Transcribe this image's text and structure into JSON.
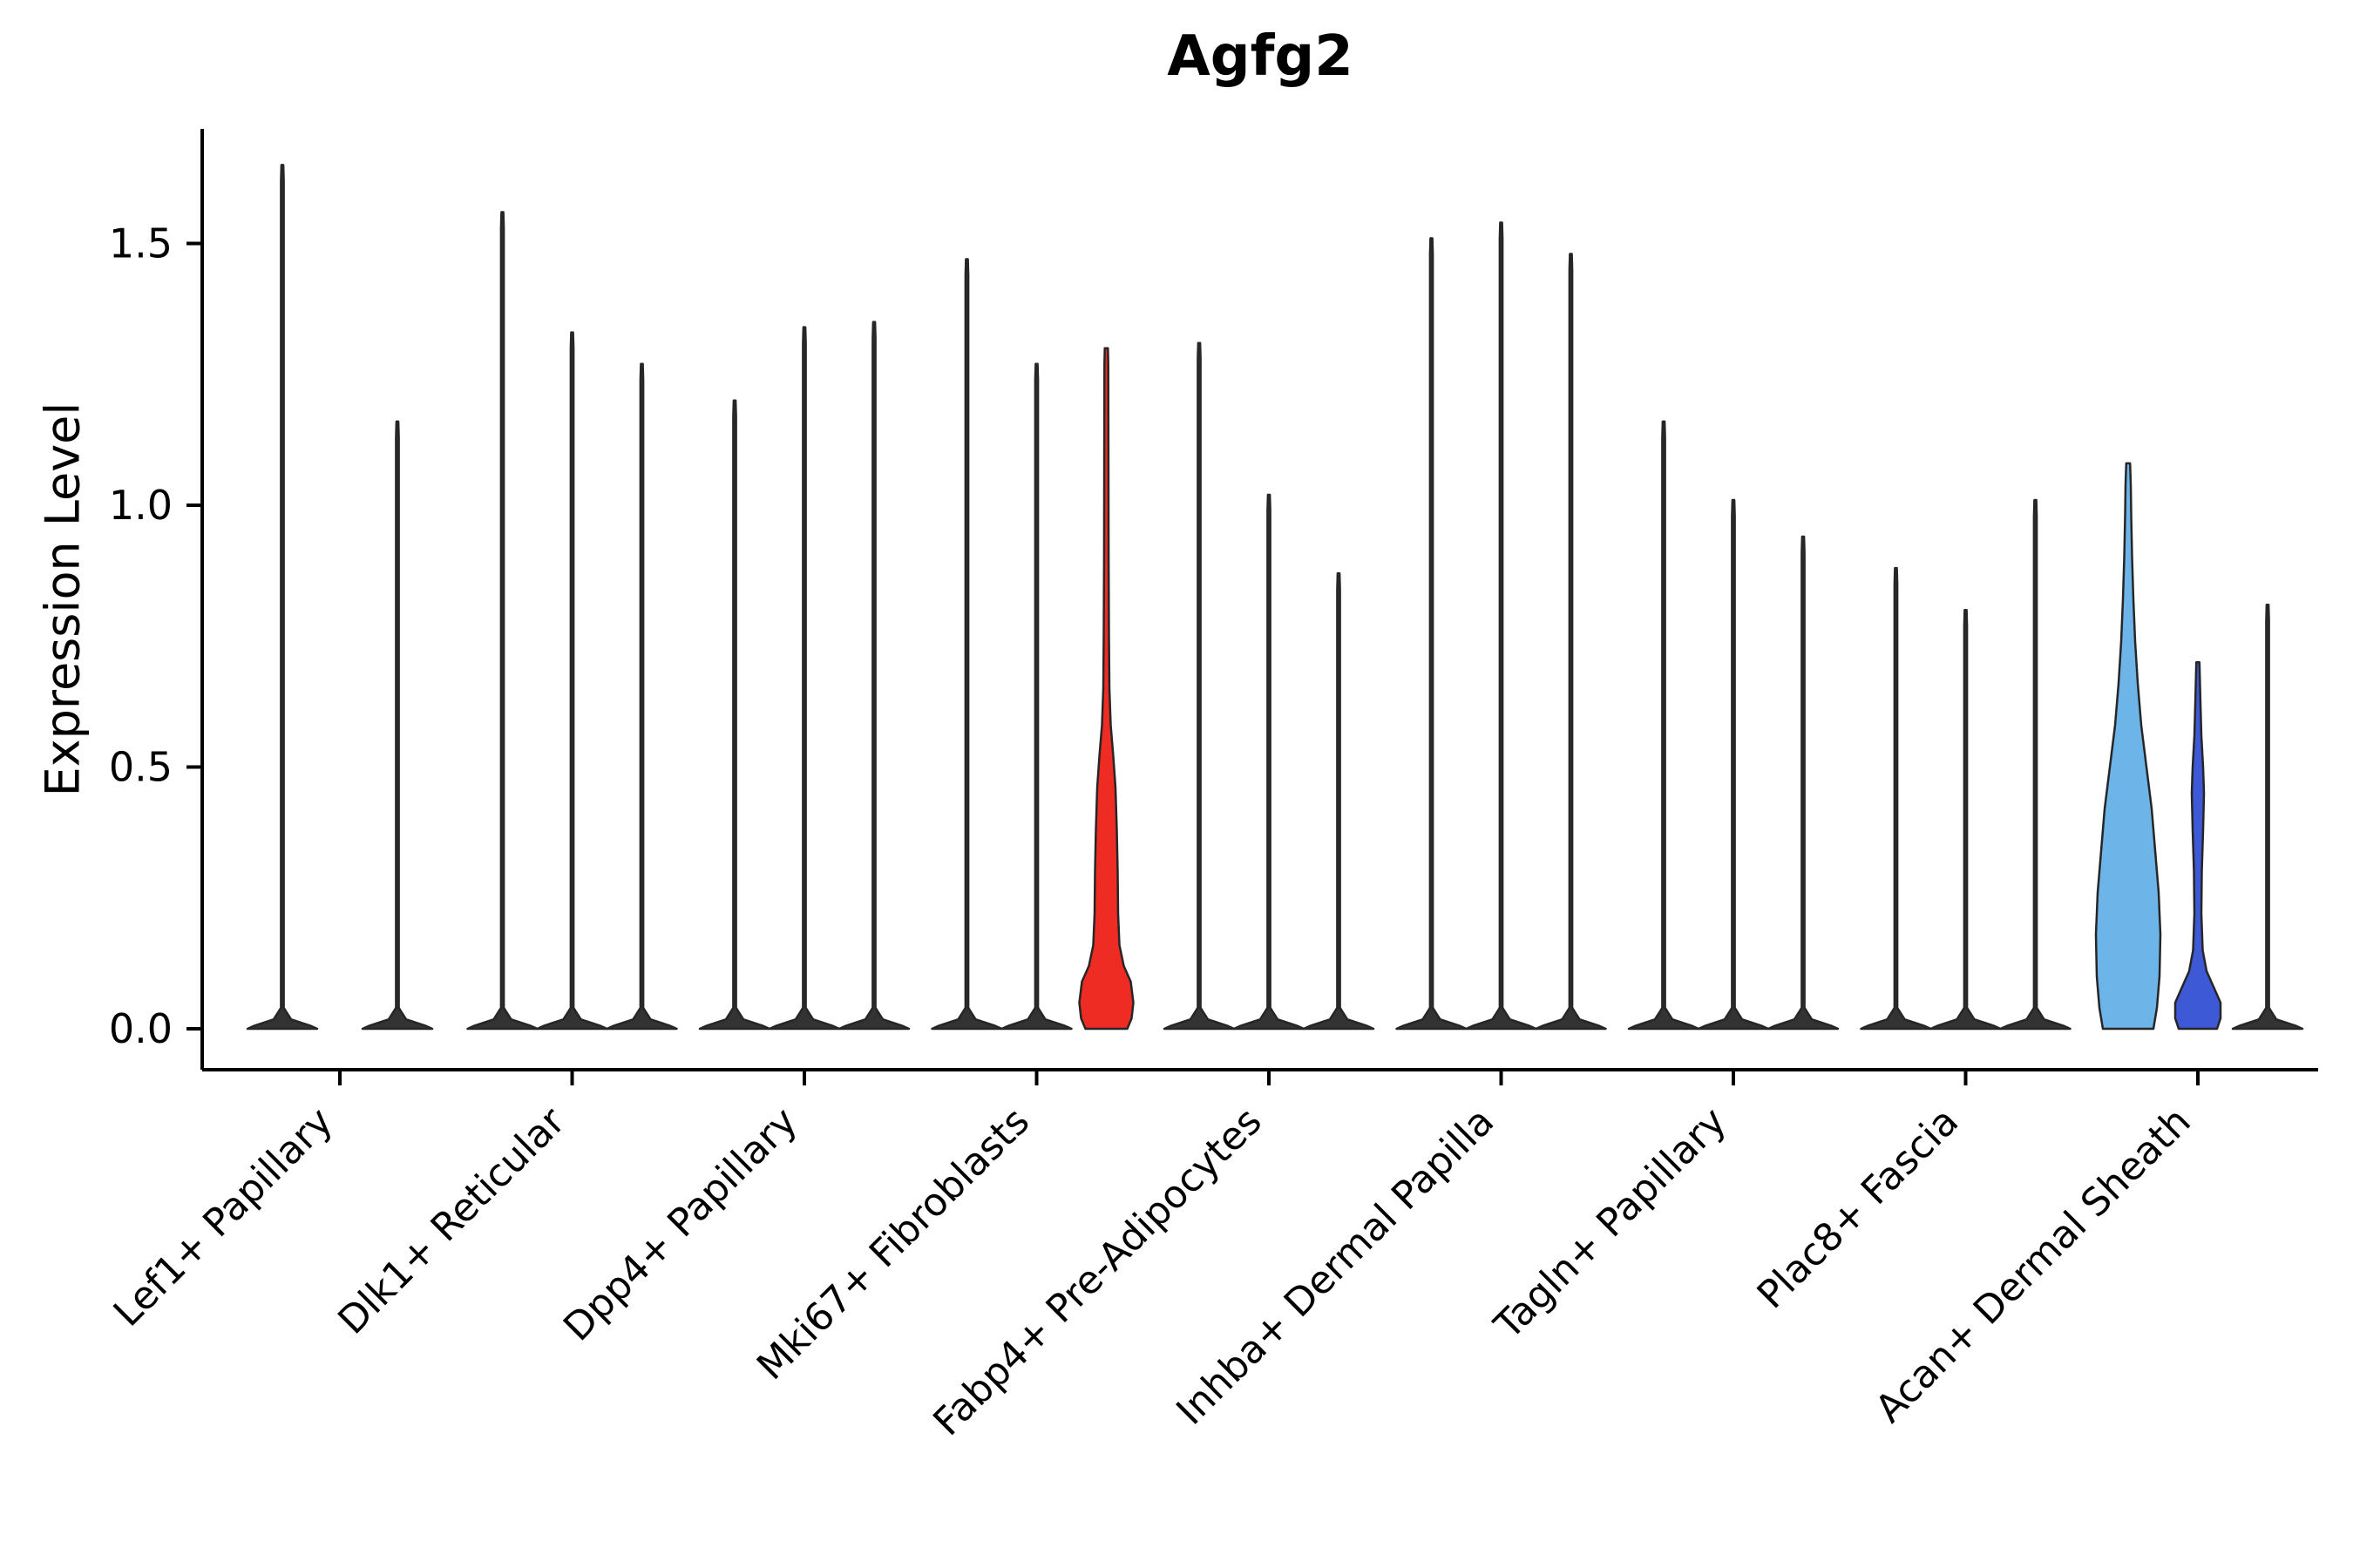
{
  "chart_data": {
    "type": "violin",
    "title": "Agfg2",
    "ylabel": "Expression Level",
    "ylim": [
      0,
      1.72
    ],
    "yticks": [
      0,
      0.5,
      1.0,
      1.5
    ],
    "ytick_labels": [
      "0.0",
      "0.5",
      "1.0",
      "1.5"
    ],
    "grid": false,
    "legend": "none",
    "colors": {
      "outline": "#262626",
      "default_fill": "#333333",
      "axis": "#000000",
      "red_violin": "#ee2c23",
      "skyblue_violin": "#6db5e8",
      "darkblue_violin": "#3d59d6"
    },
    "groups": [
      {
        "label": "Lef1+ Papillary",
        "violins": [
          {
            "max": 1.65
          },
          {
            "max": 1.16
          }
        ]
      },
      {
        "label": "Dlk1+ Reticular",
        "violins": [
          {
            "max": 1.56
          },
          {
            "max": 1.33
          },
          {
            "max": 1.27
          }
        ]
      },
      {
        "label": "Dpp4+ Papillary",
        "violins": [
          {
            "max": 1.2
          },
          {
            "max": 1.34
          },
          {
            "max": 1.35
          }
        ]
      },
      {
        "label": "Mki67+ Fibroblasts",
        "violins": [
          {
            "max": 1.47
          },
          {
            "max": 1.27
          },
          {
            "max": 1.3,
            "fill": "#ee2c23",
            "profile_ref": "mki67_red"
          }
        ]
      },
      {
        "label": "Fabp4+ Pre-Adipocytes",
        "violins": [
          {
            "max": 1.31
          },
          {
            "max": 1.02
          },
          {
            "max": 0.87
          }
        ]
      },
      {
        "label": "Inhba+ Dermal Papilla",
        "violins": [
          {
            "max": 1.51
          },
          {
            "max": 1.54
          },
          {
            "max": 1.48
          }
        ]
      },
      {
        "label": "Tagln+ Papillary",
        "violins": [
          {
            "max": 1.16
          },
          {
            "max": 1.01
          },
          {
            "max": 0.94
          }
        ]
      },
      {
        "label": "Plac8+ Fascia",
        "violins": [
          {
            "max": 0.88
          },
          {
            "max": 0.8
          },
          {
            "max": 1.01
          }
        ]
      },
      {
        "label": "Acan+ Dermal Sheath",
        "violins": [
          {
            "max": 1.08,
            "fill": "#6db5e8",
            "profile_ref": "acan_skyblue"
          },
          {
            "max": 0.7,
            "fill": "#3d59d6",
            "profile_ref": "acan_darkblue"
          },
          {
            "max": 0.81
          }
        ]
      }
    ],
    "profiles": {
      "mki67_red": [
        [
          0,
          24
        ],
        [
          0.02,
          29
        ],
        [
          0.05,
          31
        ],
        [
          0.09,
          28
        ],
        [
          0.12,
          20
        ],
        [
          0.16,
          15
        ],
        [
          0.22,
          13.5
        ],
        [
          0.3,
          13
        ],
        [
          0.38,
          12
        ],
        [
          0.46,
          10.5
        ],
        [
          0.52,
          8
        ],
        [
          0.58,
          5
        ],
        [
          0.65,
          3.5
        ],
        [
          0.75,
          3
        ],
        [
          0.9,
          2.6
        ],
        [
          1.1,
          2.4
        ],
        [
          1.27,
          2.2
        ],
        [
          1.3,
          1.8
        ]
      ],
      "acan_skyblue": [
        [
          0,
          29
        ],
        [
          0.04,
          33
        ],
        [
          0.1,
          36
        ],
        [
          0.18,
          37
        ],
        [
          0.26,
          35
        ],
        [
          0.34,
          31
        ],
        [
          0.42,
          27
        ],
        [
          0.5,
          21
        ],
        [
          0.58,
          15
        ],
        [
          0.66,
          11
        ],
        [
          0.74,
          8
        ],
        [
          0.82,
          6
        ],
        [
          0.9,
          4.5
        ],
        [
          0.98,
          3.5
        ],
        [
          1.04,
          3
        ],
        [
          1.08,
          2.2
        ]
      ],
      "acan_darkblue": [
        [
          0,
          22
        ],
        [
          0.02,
          26
        ],
        [
          0.05,
          26
        ],
        [
          0.08,
          18
        ],
        [
          0.11,
          10
        ],
        [
          0.15,
          5.5
        ],
        [
          0.22,
          4
        ],
        [
          0.3,
          4.5
        ],
        [
          0.38,
          6
        ],
        [
          0.45,
          7
        ],
        [
          0.5,
          6
        ],
        [
          0.56,
          4
        ],
        [
          0.62,
          3
        ],
        [
          0.7,
          1.8
        ]
      ]
    }
  }
}
